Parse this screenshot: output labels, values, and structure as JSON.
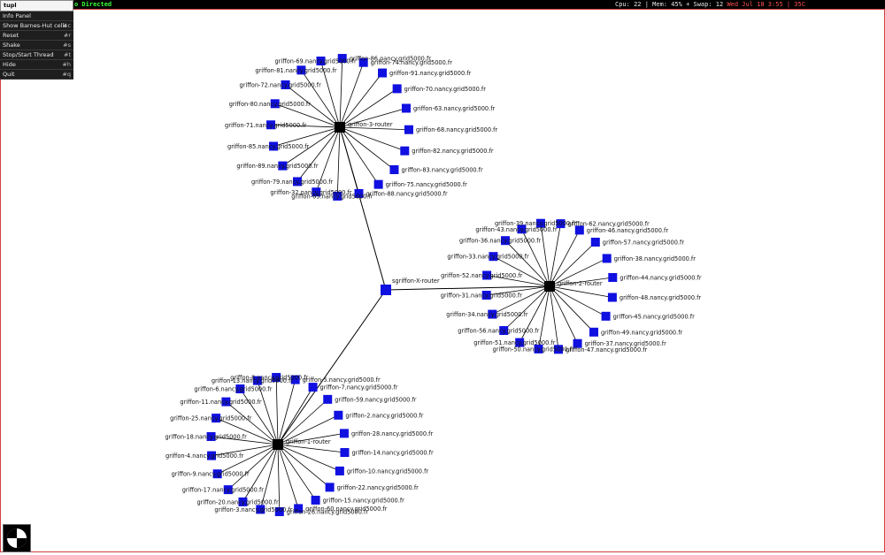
{
  "topbar": {
    "title_fragment": "o Directed",
    "status_prefix": "Cpu: 22 | Mem: 45% + Swap: 12",
    "date": "Wed Jul 18  3:55 | 35C"
  },
  "menu": {
    "title": "tupl",
    "items": [
      {
        "label": "Info Panel",
        "key": ""
      },
      {
        "label": "Show Barnes-Hut cells",
        "key": "#c"
      },
      {
        "label": "Reset",
        "key": "#r"
      },
      {
        "label": "Shake",
        "key": "#s"
      },
      {
        "label": "Stop/Start Thread",
        "key": "#t"
      },
      {
        "label": "Hide",
        "key": "#h"
      },
      {
        "label": "Quit",
        "key": "#q"
      }
    ]
  },
  "colors": {
    "node": "#1010e0",
    "edge": "#000000",
    "frame": "#d04040",
    "topbar_title": "#3aff3a",
    "topbar_date": "#ff5050"
  },
  "graph": {
    "center_router": "sgriffon-X-router",
    "clusters": [
      {
        "router": "griffon-3-router",
        "nodes": [
          "griffon-74.nancy.grid5000.fr",
          "griffon-91.nancy.grid5000.fr",
          "griffon-70.nancy.grid5000.fr",
          "griffon-63.nancy.grid5000.fr",
          "griffon-68.nancy.grid5000.fr",
          "griffon-82.nancy.grid5000.fr",
          "griffon-83.nancy.grid5000.fr",
          "griffon-75.nancy.grid5000.fr",
          "griffon-88.nancy.grid5000.fr",
          "griffon-65.nancy.grid5000.fr",
          "griffon-32.nancy.grid5000.fr",
          "griffon-79.nancy.grid5000.fr",
          "griffon-89.nancy.grid5000.fr",
          "griffon-85.nancy.grid5000.fr",
          "griffon-71.nancy.grid5000.fr",
          "griffon-80.nancy.grid5000.fr",
          "griffon-72.nancy.grid5000.fr",
          "griffon-81.nancy.grid5000.fr",
          "griffon-69.nancy.grid5000.fr",
          "griffon-86.nancy.grid5000.fr"
        ]
      },
      {
        "router": "griffon-2-router",
        "nodes": [
          "griffon-62.nancy.grid5000.fr",
          "griffon-46.nancy.grid5000.fr",
          "griffon-57.nancy.grid5000.fr",
          "griffon-38.nancy.grid5000.fr",
          "griffon-44.nancy.grid5000.fr",
          "griffon-48.nancy.grid5000.fr",
          "griffon-45.nancy.grid5000.fr",
          "griffon-49.nancy.grid5000.fr",
          "griffon-37.nancy.grid5000.fr",
          "griffon-47.nancy.grid5000.fr",
          "griffon-50.nancy.grid5000.fr",
          "griffon-51.nancy.grid5000.fr",
          "griffon-56.nancy.grid5000.fr",
          "griffon-34.nancy.grid5000.fr",
          "griffon-31.nancy.grid5000.fr",
          "griffon-52.nancy.grid5000.fr",
          "griffon-33.nancy.grid5000.fr",
          "griffon-36.nancy.grid5000.fr",
          "griffon-43.nancy.grid5000.fr",
          "griffon-39.nancy.grid5000.fr"
        ]
      },
      {
        "router": "griffon-1-router",
        "nodes": [
          "griffon-5.nancy.grid5000.fr",
          "griffon-7.nancy.grid5000.fr",
          "griffon-59.nancy.grid5000.fr",
          "griffon-2.nancy.grid5000.fr",
          "griffon-28.nancy.grid5000.fr",
          "griffon-14.nancy.grid5000.fr",
          "griffon-10.nancy.grid5000.fr",
          "griffon-22.nancy.grid5000.fr",
          "griffon-15.nancy.grid5000.fr",
          "griffon-60.nancy.grid5000.fr",
          "griffon-26.nancy.grid5000.fr",
          "griffon-3.nancy.grid5000.fr",
          "griffon-20.nancy.grid5000.fr",
          "griffon-17.nancy.grid5000.fr",
          "griffon-9.nancy.grid5000.fr",
          "griffon-4.nancy.grid5000.fr",
          "griffon-18.nancy.grid5000.fr",
          "griffon-25.nancy.grid5000.fr",
          "griffon-11.nancy.grid5000.fr",
          "griffon-6.nancy.grid5000.fr",
          "griffon-13.nancy.grid5000.fr",
          "griffon-8.nancy.grid5000.fr"
        ]
      }
    ]
  }
}
